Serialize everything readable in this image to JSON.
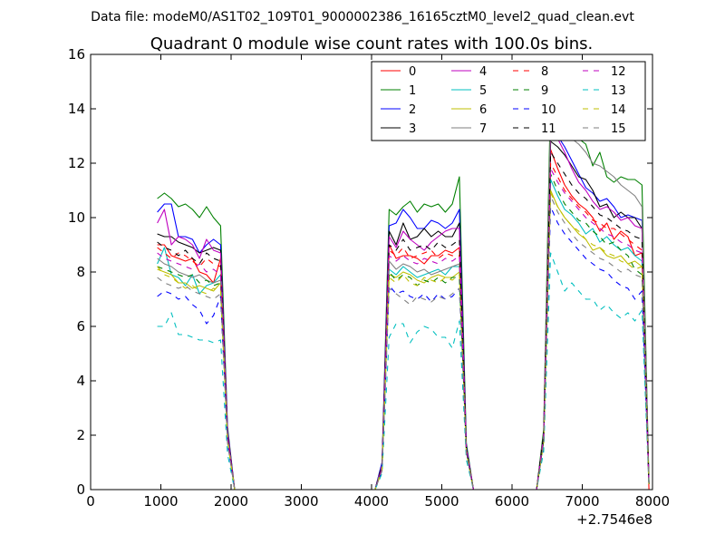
{
  "suptitle": "Data file: modeM0/AS1T02_109T01_9000002386_16165cztM0_level2_quad_clean.evt",
  "chart_data": {
    "type": "line",
    "title": "Quadrant 0 module wise count rates with 100.0s bins.",
    "xlabel": "",
    "ylabel": "",
    "x_offset_label": "+2.7546e8",
    "xlim": [
      0,
      8000
    ],
    "ylim": [
      0,
      16
    ],
    "x_ticks": [
      "0",
      "1000",
      "2000",
      "3000",
      "4000",
      "5000",
      "6000",
      "7000",
      "8000"
    ],
    "y_ticks": [
      "0",
      "2",
      "4",
      "6",
      "8",
      "10",
      "12",
      "14",
      "16"
    ],
    "grid": false,
    "legend_position": "top-right",
    "legend_columns": 4,
    "x_segments": [
      [
        950,
        1050,
        1150,
        1250,
        1350,
        1450,
        1550,
        1650,
        1750,
        1850,
        1950,
        2050
      ],
      [
        2150,
        2550,
        2950,
        3350,
        3750,
        4050
      ],
      [
        4150,
        4250,
        4350,
        4450,
        4550,
        4650,
        4750,
        4850,
        4950,
        5050,
        5150,
        5250,
        5350,
        5450
      ],
      [
        5550,
        6050,
        6350
      ],
      [
        6450,
        6550,
        6650,
        6750,
        6850,
        6950,
        7050,
        7150,
        7250,
        7350,
        7450,
        7550,
        7650,
        7750,
        7850,
        7950
      ]
    ],
    "series": [
      {
        "name": "0",
        "color": "#ff0000",
        "dash": "solid",
        "values": [
          [
            9.0,
            9.0,
            8.6,
            8.5,
            8.4,
            8.5,
            8.0,
            7.9,
            7.6,
            8.5,
            2.0,
            0
          ],
          [
            0,
            0,
            0,
            0,
            0,
            0
          ],
          [
            0.8,
            9.0,
            8.5,
            8.6,
            8.6,
            8.5,
            8.3,
            8.6,
            8.6,
            8.8,
            8.7,
            8.9,
            1.5,
            0
          ],
          [
            0,
            0,
            0
          ],
          [
            1.8,
            12.5,
            11.8,
            11.2,
            10.8,
            10.5,
            10.3,
            10.0,
            9.5,
            9.8,
            9.2,
            9.5,
            9.3,
            8.6,
            8.7,
            0
          ]
        ]
      },
      {
        "name": "1",
        "color": "#008000",
        "dash": "solid",
        "values": [
          [
            10.7,
            10.9,
            10.7,
            10.4,
            10.5,
            10.3,
            10.0,
            10.4,
            10.0,
            9.7,
            2.3,
            0
          ],
          [
            0,
            0,
            0,
            0,
            0,
            0
          ],
          [
            1.0,
            10.3,
            10.1,
            10.4,
            10.6,
            10.2,
            10.5,
            10.4,
            10.5,
            10.2,
            10.5,
            11.5,
            1.7,
            0
          ],
          [
            0,
            0,
            0
          ],
          [
            2.2,
            14.6,
            14.0,
            13.4,
            13.1,
            12.9,
            12.7,
            11.9,
            12.4,
            11.5,
            11.3,
            11.5,
            11.4,
            11.4,
            11.2,
            0.3
          ]
        ]
      },
      {
        "name": "2",
        "color": "#0000ff",
        "dash": "solid",
        "values": [
          [
            10.2,
            10.5,
            10.5,
            9.3,
            9.3,
            9.2,
            8.7,
            9.0,
            9.2,
            9.0,
            2.2,
            0
          ],
          [
            0,
            0,
            0,
            0,
            0,
            0
          ],
          [
            1.0,
            9.7,
            9.8,
            10.3,
            10.0,
            9.6,
            9.6,
            9.9,
            9.8,
            9.6,
            9.8,
            10.3,
            1.6,
            0
          ],
          [
            0,
            0,
            0
          ],
          [
            2.0,
            13.4,
            13.0,
            12.6,
            12.1,
            11.6,
            11.1,
            10.9,
            10.6,
            10.7,
            10.4,
            10.0,
            10.1,
            10.0,
            9.9,
            0.2
          ]
        ]
      },
      {
        "name": "3",
        "color": "#000000",
        "dash": "solid",
        "values": [
          [
            9.4,
            9.3,
            9.3,
            9.1,
            9.0,
            8.9,
            8.7,
            8.8,
            8.9,
            8.8,
            2.0,
            0
          ],
          [
            0,
            0,
            0,
            0,
            0,
            0
          ],
          [
            0.9,
            9.5,
            9.0,
            9.8,
            9.2,
            9.3,
            9.6,
            9.3,
            9.5,
            9.3,
            9.3,
            9.8,
            1.5,
            0
          ],
          [
            0,
            0,
            0
          ],
          [
            2.0,
            12.8,
            12.6,
            12.3,
            11.9,
            11.5,
            11.4,
            11.0,
            10.4,
            10.5,
            10.0,
            10.2,
            10.0,
            10.0,
            9.6,
            0.2
          ]
        ]
      },
      {
        "name": "4",
        "color": "#bf00bf",
        "dash": "solid",
        "values": [
          [
            9.8,
            10.3,
            9.0,
            9.3,
            9.2,
            9.0,
            8.5,
            9.2,
            8.8,
            8.7,
            2.1,
            0
          ],
          [
            0,
            0,
            0,
            0,
            0,
            0
          ],
          [
            0.9,
            9.3,
            8.9,
            9.5,
            9.2,
            9.0,
            8.8,
            9.1,
            9.3,
            9.5,
            9.6,
            9.6,
            1.5,
            0
          ],
          [
            0,
            0,
            0
          ],
          [
            2.0,
            13.2,
            12.9,
            12.4,
            11.8,
            11.3,
            11.0,
            10.6,
            10.3,
            10.4,
            10.2,
            9.9,
            10.0,
            9.7,
            9.6,
            0.2
          ]
        ]
      },
      {
        "name": "5",
        "color": "#00bfbf",
        "dash": "solid",
        "values": [
          [
            8.3,
            8.9,
            7.9,
            7.8,
            7.5,
            7.9,
            7.2,
            7.5,
            7.6,
            7.9,
            1.8,
            0
          ],
          [
            0,
            0,
            0,
            0,
            0,
            0
          ],
          [
            0.8,
            8.1,
            7.9,
            8.2,
            8.0,
            7.8,
            7.9,
            8.0,
            8.1,
            7.9,
            8.2,
            8.2,
            1.4,
            0
          ],
          [
            0,
            0,
            0
          ],
          [
            1.8,
            11.4,
            10.8,
            10.3,
            10.1,
            9.8,
            9.4,
            9.6,
            9.1,
            9.3,
            9.0,
            8.8,
            8.9,
            8.6,
            8.4,
            0.2
          ]
        ]
      },
      {
        "name": "6",
        "color": "#bfbf00",
        "dash": "solid",
        "values": [
          [
            8.1,
            8.0,
            7.9,
            7.6,
            7.6,
            7.4,
            7.5,
            7.4,
            7.3,
            7.6,
            1.8,
            0
          ],
          [
            0,
            0,
            0,
            0,
            0,
            0
          ],
          [
            0.8,
            7.9,
            7.8,
            8.0,
            7.9,
            7.7,
            7.6,
            7.8,
            7.9,
            7.8,
            7.8,
            8.0,
            1.4,
            0
          ],
          [
            0,
            0,
            0
          ],
          [
            1.8,
            11.0,
            10.4,
            10.0,
            9.7,
            9.4,
            9.2,
            8.8,
            8.9,
            8.6,
            8.5,
            8.6,
            8.3,
            8.4,
            8.2,
            0.2
          ]
        ]
      },
      {
        "name": "7",
        "color": "#7f7f7f",
        "dash": "solid",
        "values": [
          [
            8.5,
            8.3,
            8.2,
            8.0,
            7.9,
            7.8,
            7.9,
            7.7,
            7.6,
            7.7,
            1.9,
            0
          ],
          [
            0,
            0,
            0,
            0,
            0,
            0
          ],
          [
            0.8,
            8.4,
            8.1,
            8.3,
            8.2,
            8.0,
            8.1,
            7.9,
            8.0,
            8.1,
            8.2,
            8.3,
            1.4,
            0
          ],
          [
            0,
            0,
            0
          ],
          [
            1.9,
            13.9,
            13.4,
            13.2,
            12.9,
            12.7,
            12.4,
            12.0,
            11.9,
            11.7,
            11.5,
            11.2,
            11.0,
            10.8,
            10.4,
            0.2
          ]
        ]
      },
      {
        "name": "8",
        "color": "#ff0000",
        "dash": "dashed",
        "values": [
          [
            8.9,
            8.7,
            8.5,
            8.7,
            8.6,
            8.4,
            8.2,
            8.5,
            8.3,
            8.2,
            2.0,
            0
          ],
          [
            0,
            0,
            0,
            0,
            0,
            0
          ],
          [
            0.8,
            8.8,
            8.6,
            8.9,
            8.5,
            8.6,
            8.7,
            8.8,
            8.5,
            8.7,
            8.6,
            8.6,
            1.5,
            0
          ],
          [
            0,
            0,
            0
          ],
          [
            1.9,
            12.0,
            11.5,
            11.0,
            10.7,
            10.4,
            10.2,
            9.9,
            9.8,
            9.6,
            9.6,
            9.4,
            9.2,
            9.0,
            8.8,
            0.2
          ]
        ]
      },
      {
        "name": "9",
        "color": "#008000",
        "dash": "dashed",
        "values": [
          [
            8.2,
            8.1,
            8.0,
            7.9,
            7.8,
            7.9,
            7.6,
            7.7,
            7.5,
            7.6,
            1.8,
            0
          ],
          [
            0,
            0,
            0,
            0,
            0,
            0
          ],
          [
            0.8,
            8.0,
            7.7,
            7.9,
            7.8,
            7.5,
            7.7,
            7.6,
            7.8,
            7.6,
            7.8,
            7.8,
            1.4,
            0
          ],
          [
            0,
            0,
            0
          ],
          [
            1.8,
            11.6,
            11.0,
            10.5,
            10.2,
            9.9,
            9.8,
            9.5,
            9.3,
            9.0,
            9.1,
            8.8,
            8.6,
            8.1,
            7.9,
            0.2
          ]
        ]
      },
      {
        "name": "10",
        "color": "#0000ff",
        "dash": "dashed",
        "values": [
          [
            7.1,
            7.3,
            7.2,
            7.0,
            7.1,
            6.8,
            6.6,
            6.1,
            6.4,
            7.1,
            1.7,
            0
          ],
          [
            0,
            0,
            0,
            0,
            0,
            0
          ],
          [
            0.7,
            7.5,
            7.2,
            7.3,
            7.1,
            7.0,
            7.2,
            6.9,
            7.2,
            7.0,
            7.1,
            7.4,
            1.3,
            0
          ],
          [
            0,
            0,
            0
          ],
          [
            1.6,
            10.4,
            9.8,
            9.4,
            9.1,
            8.8,
            8.5,
            8.3,
            8.1,
            8.0,
            7.7,
            7.5,
            7.4,
            7.0,
            7.3,
            0.2
          ]
        ]
      },
      {
        "name": "11",
        "color": "#000000",
        "dash": "dashed",
        "values": [
          [
            9.1,
            8.9,
            8.8,
            8.6,
            8.8,
            8.5,
            8.3,
            8.7,
            8.5,
            8.4,
            2.0,
            0
          ],
          [
            0,
            0,
            0,
            0,
            0,
            0
          ],
          [
            0.9,
            9.0,
            8.8,
            9.2,
            8.8,
            8.9,
            9.0,
            8.8,
            9.1,
            8.9,
            9.0,
            9.2,
            1.5,
            0
          ],
          [
            0,
            0,
            0
          ],
          [
            2.0,
            12.4,
            12.0,
            11.6,
            11.2,
            10.9,
            10.7,
            10.4,
            10.1,
            10.0,
            9.8,
            9.6,
            9.5,
            9.3,
            9.2,
            0.2
          ]
        ]
      },
      {
        "name": "12",
        "color": "#bf00bf",
        "dash": "dashed",
        "values": [
          [
            8.7,
            8.5,
            8.4,
            8.3,
            8.2,
            8.1,
            8.3,
            8.0,
            8.1,
            7.9,
            1.9,
            0
          ],
          [
            0,
            0,
            0,
            0,
            0,
            0
          ],
          [
            0.8,
            8.6,
            8.4,
            8.6,
            8.4,
            8.3,
            8.5,
            8.4,
            8.3,
            8.5,
            8.4,
            8.6,
            1.5,
            0
          ],
          [
            0,
            0,
            0
          ],
          [
            1.9,
            11.8,
            11.3,
            10.9,
            10.6,
            10.3,
            10.0,
            9.8,
            9.6,
            9.4,
            9.3,
            9.1,
            9.0,
            8.8,
            8.7,
            0.2
          ]
        ]
      },
      {
        "name": "13",
        "color": "#00bfbf",
        "dash": "dashed",
        "values": [
          [
            6.0,
            6.0,
            6.5,
            5.7,
            5.7,
            5.6,
            5.5,
            5.5,
            5.4,
            5.5,
            1.3,
            0
          ],
          [
            0,
            0,
            0,
            0,
            0,
            0
          ],
          [
            0.6,
            5.6,
            6.1,
            6.1,
            5.4,
            5.8,
            6.0,
            5.9,
            5.6,
            5.6,
            5.2,
            6.2,
            1.1,
            0
          ],
          [
            0,
            0,
            0
          ],
          [
            1.4,
            8.7,
            8.0,
            7.3,
            7.6,
            7.3,
            7.0,
            7.0,
            6.6,
            6.8,
            6.5,
            6.3,
            6.5,
            6.2,
            6.6,
            0.1
          ]
        ]
      },
      {
        "name": "14",
        "color": "#bfbf00",
        "dash": "dashed",
        "values": [
          [
            8.2,
            7.9,
            7.8,
            7.6,
            7.4,
            7.5,
            7.3,
            7.2,
            7.4,
            7.3,
            1.8,
            0
          ],
          [
            0,
            0,
            0,
            0,
            0,
            0
          ],
          [
            0.7,
            7.8,
            7.6,
            7.9,
            7.6,
            7.5,
            7.8,
            7.7,
            7.6,
            7.8,
            7.7,
            7.9,
            1.4,
            0
          ],
          [
            0,
            0,
            0
          ],
          [
            1.7,
            10.9,
            10.4,
            10.0,
            9.7,
            9.5,
            9.2,
            9.0,
            8.9,
            8.7,
            8.6,
            8.4,
            8.3,
            8.1,
            8.2,
            0.2
          ]
        ]
      },
      {
        "name": "15",
        "color": "#7f7f7f",
        "dash": "dashed",
        "values": [
          [
            7.8,
            7.6,
            7.5,
            7.4,
            7.5,
            7.3,
            7.2,
            7.1,
            7.0,
            7.2,
            1.7,
            0
          ],
          [
            0,
            0,
            0,
            0,
            0,
            0
          ],
          [
            0.7,
            7.4,
            7.2,
            7.0,
            6.8,
            7.1,
            7.0,
            6.9,
            7.1,
            7.0,
            7.2,
            7.4,
            1.3,
            0
          ],
          [
            0,
            0,
            0
          ],
          [
            1.7,
            10.8,
            10.2,
            9.8,
            9.4,
            9.1,
            8.9,
            8.7,
            8.5,
            8.4,
            8.2,
            8.0,
            8.1,
            7.9,
            7.8,
            0.2
          ]
        ]
      }
    ]
  }
}
